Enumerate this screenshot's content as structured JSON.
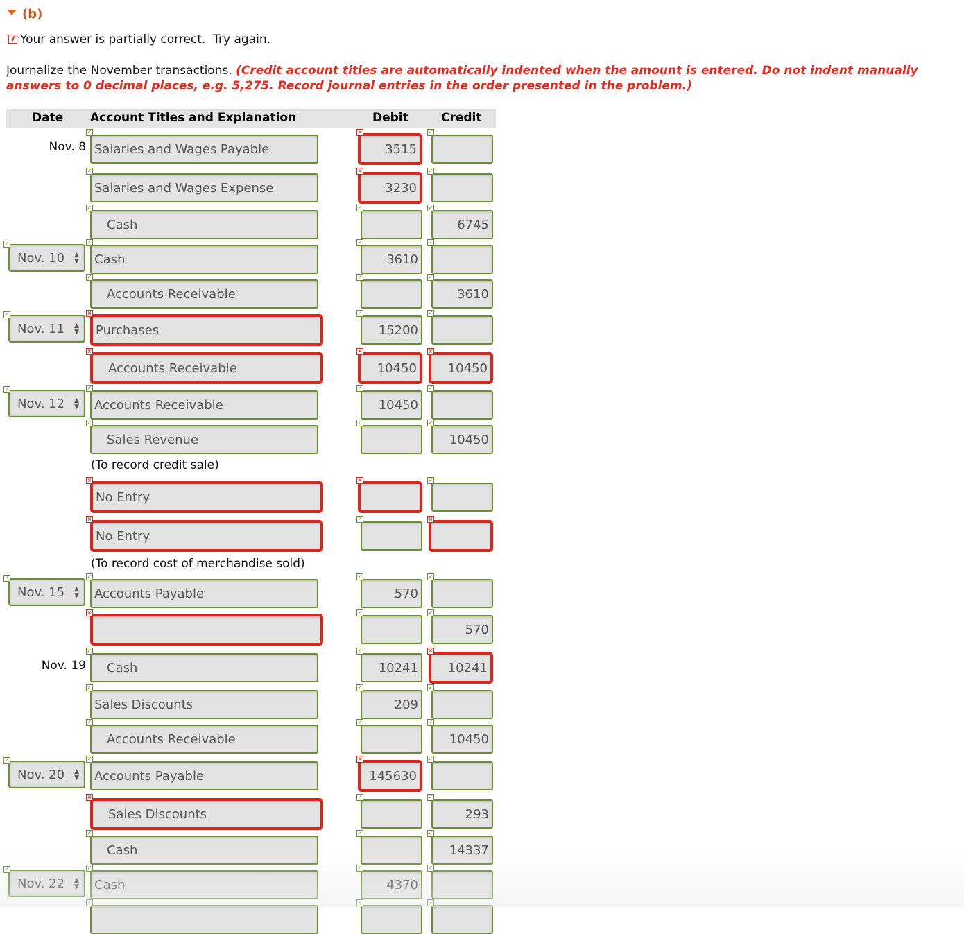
{
  "section": {
    "label": "(b)",
    "icon": "triangle-down-icon"
  },
  "status": {
    "text": "Your answer is partially correct.  Try again.",
    "icon": "partially-correct-icon",
    "color": "#d03a25"
  },
  "instructions": {
    "text": "Journalize the November transactions. ",
    "note_line1": "(Credit account titles are automatically indented when the amount is entered. Do not indent manually",
    "note_line2": "answers to 0 decimal places, e.g. 5,275. Record journal entries in the order presented in the problem.)"
  },
  "table": {
    "headers": {
      "date": "Date",
      "account": "Account Titles and Explanation",
      "debit": "Debit",
      "credit": "Credit"
    }
  },
  "colors": {
    "correct": "#6b8e2f",
    "incorrect": "#d8281e",
    "accent": "#c8561e"
  },
  "rows": [
    {
      "date_text": "Nov. 8",
      "account": "Salaries and Wages Payable",
      "indent": false,
      "acct_ok": true,
      "debit": "3515",
      "debit_ok": false,
      "credit": "",
      "credit_ok": true
    },
    {
      "account": "Salaries and Wages Expense",
      "indent": false,
      "acct_ok": true,
      "debit": "3230",
      "debit_ok": false,
      "credit": "",
      "credit_ok": true
    },
    {
      "account": "Cash",
      "indent": true,
      "acct_ok": true,
      "debit": "",
      "debit_ok": true,
      "credit": "6745",
      "credit_ok": true
    },
    {
      "date_select": "Nov. 10",
      "account": "Cash",
      "indent": false,
      "acct_ok": true,
      "debit": "3610",
      "debit_ok": true,
      "credit": "",
      "credit_ok": true
    },
    {
      "account": "Accounts Receivable",
      "indent": true,
      "acct_ok": true,
      "debit": "",
      "debit_ok": true,
      "credit": "3610",
      "credit_ok": true
    },
    {
      "date_select": "Nov. 11",
      "account": "Purchases",
      "indent": false,
      "acct_ok": false,
      "debit": "15200",
      "debit_ok": true,
      "credit": "",
      "credit_ok": true
    },
    {
      "account": "Accounts Receivable",
      "indent": true,
      "acct_ok": false,
      "debit": "10450",
      "debit_ok": false,
      "credit": "10450",
      "credit_ok": false
    },
    {
      "date_select": "Nov. 12",
      "account": "Accounts Receivable",
      "indent": false,
      "acct_ok": true,
      "debit": "10450",
      "debit_ok": true,
      "credit": "",
      "credit_ok": true
    },
    {
      "account": "Sales Revenue",
      "indent": true,
      "acct_ok": true,
      "debit": "",
      "debit_ok": true,
      "credit": "10450",
      "credit_ok": true,
      "explanation": "(To record credit sale)"
    },
    {
      "account": "No Entry",
      "indent": false,
      "acct_ok": false,
      "debit": "",
      "debit_ok": false,
      "credit": "",
      "credit_ok": true
    },
    {
      "account": "No Entry",
      "indent": false,
      "acct_ok": false,
      "debit": "",
      "debit_ok": true,
      "credit": "",
      "credit_ok": false,
      "explanation": "(To record cost of merchandise sold)"
    },
    {
      "date_select": "Nov. 15",
      "account": "Accounts Payable",
      "indent": false,
      "acct_ok": true,
      "debit": "570",
      "debit_ok": true,
      "credit": "",
      "credit_ok": true
    },
    {
      "account": "",
      "indent": false,
      "acct_ok": false,
      "debit": "",
      "debit_ok": true,
      "credit": "570",
      "credit_ok": true
    },
    {
      "date_text": "Nov. 19",
      "account": "Cash",
      "indent": true,
      "acct_ok": true,
      "debit": "10241",
      "debit_ok": true,
      "credit": "10241",
      "credit_ok": false
    },
    {
      "account": "Sales Discounts",
      "indent": false,
      "acct_ok": true,
      "debit": "209",
      "debit_ok": true,
      "credit": "",
      "credit_ok": true
    },
    {
      "account": "Accounts Receivable",
      "indent": true,
      "acct_ok": true,
      "debit": "",
      "debit_ok": true,
      "credit": "10450",
      "credit_ok": true
    },
    {
      "date_select": "Nov. 20",
      "account": "Accounts Payable",
      "indent": false,
      "acct_ok": true,
      "debit": "145630",
      "debit_ok": false,
      "credit": "",
      "credit_ok": true
    },
    {
      "account": "Sales Discounts",
      "indent": true,
      "acct_ok": false,
      "debit": "",
      "debit_ok": true,
      "credit": "293",
      "credit_ok": true
    },
    {
      "account": "Cash",
      "indent": true,
      "acct_ok": true,
      "debit": "",
      "debit_ok": true,
      "credit": "14337",
      "credit_ok": true
    },
    {
      "date_select": "Nov. 22",
      "account": "Cash",
      "indent": false,
      "acct_ok": true,
      "debit": "4370",
      "debit_ok": true,
      "credit": "",
      "credit_ok": true
    },
    {
      "account": "",
      "indent": false,
      "acct_ok": true,
      "debit": "",
      "debit_ok": true,
      "credit": "",
      "credit_ok": true
    }
  ]
}
